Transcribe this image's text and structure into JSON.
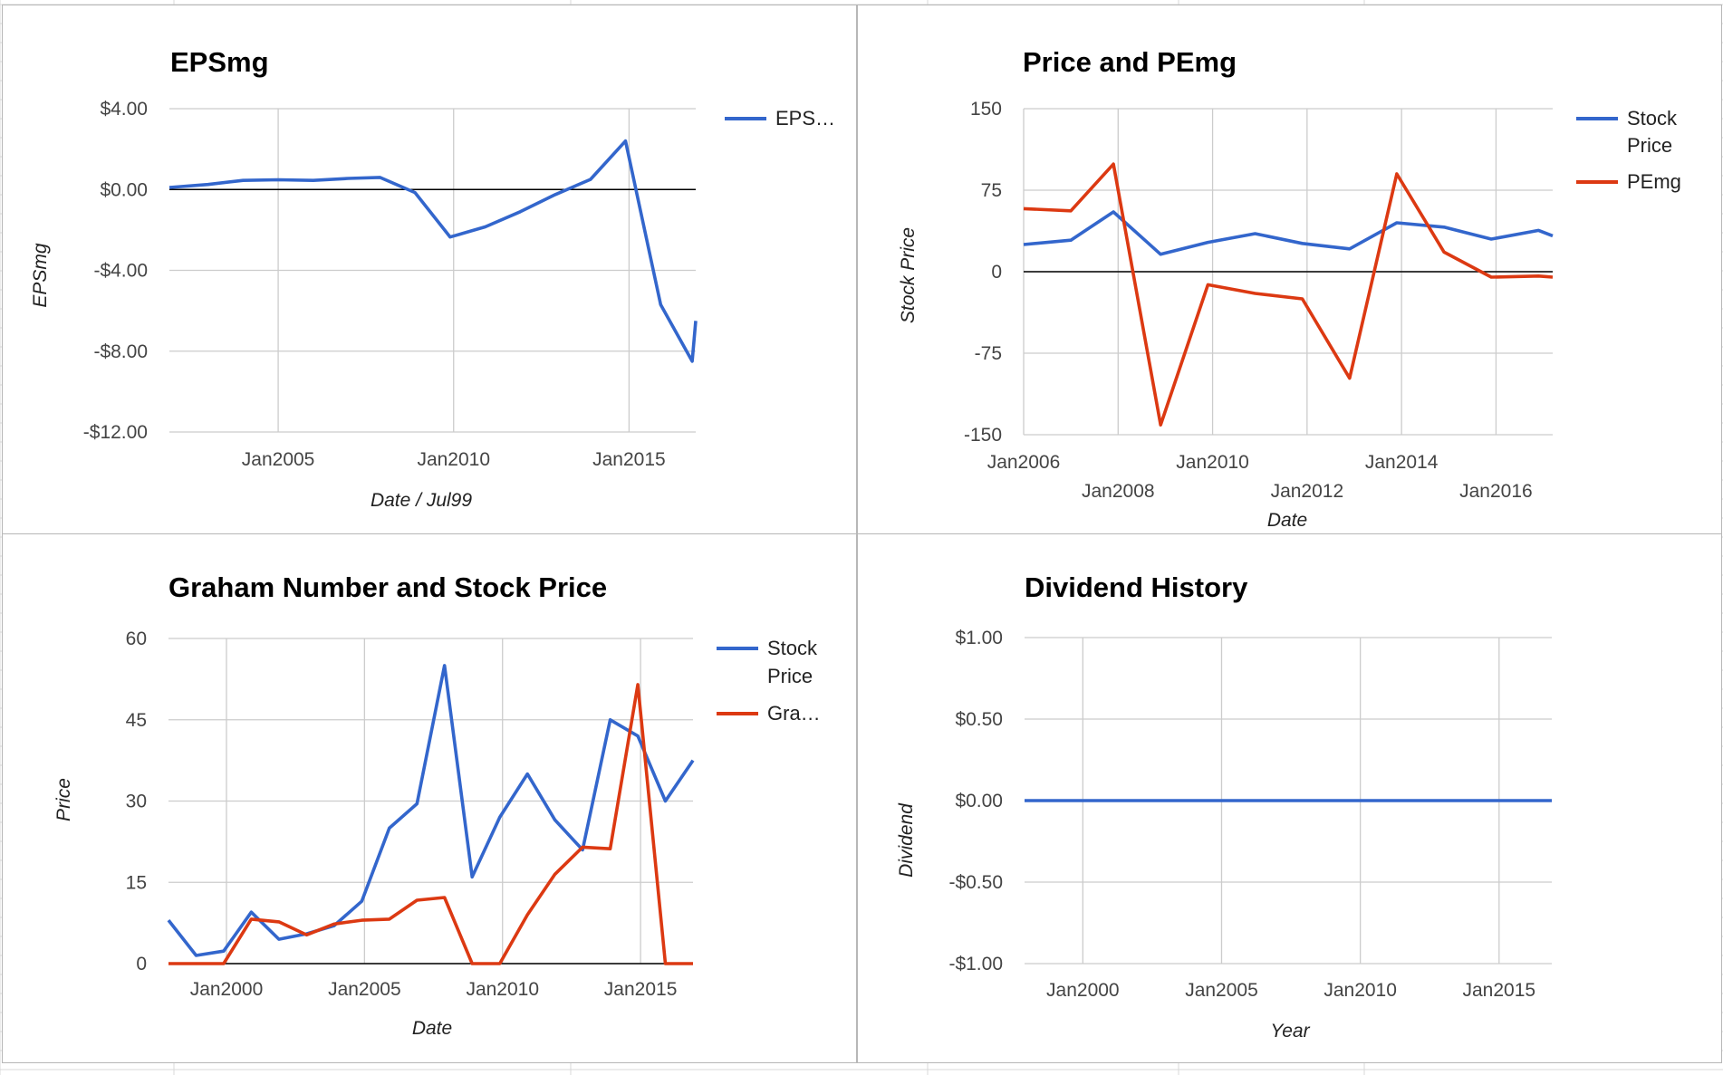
{
  "colors": {
    "blue": "#3366cc",
    "red": "#dc3912",
    "grid": "#cccccc",
    "zero": "#000000"
  },
  "chart_data": [
    {
      "id": "eps",
      "type": "line",
      "title": "EPSmg",
      "xlabel": "Date / Jul99",
      "ylabel": "EPSmg",
      "xlim": [
        2001.9,
        2016.9
      ],
      "ylim": [
        -12,
        4
      ],
      "yticks": [
        4,
        0,
        -4,
        -8,
        -12
      ],
      "ytick_labels": [
        "$4.00",
        "$0.00",
        "-$4.00",
        "-$8.00",
        "-$12.00"
      ],
      "xticks": [
        2005,
        2010,
        2015
      ],
      "xtick_labels": [
        "Jan2005",
        "Jan2010",
        "Jan2015"
      ],
      "legend": "right",
      "grid": true,
      "series": [
        {
          "name": "EPS…",
          "color": "#3366cc",
          "x": [
            2001.9,
            2003.0,
            2004.0,
            2005.0,
            2006.0,
            2007.0,
            2007.9,
            2008.9,
            2009.9,
            2010.9,
            2011.9,
            2012.9,
            2013.9,
            2014.9,
            2015.9,
            2016.8,
            2016.9
          ],
          "y": [
            0.1,
            0.25,
            0.45,
            0.48,
            0.45,
            0.55,
            0.6,
            -0.15,
            -2.35,
            -1.85,
            -1.1,
            -0.25,
            0.5,
            2.4,
            -5.7,
            -8.5,
            -6.5
          ]
        }
      ]
    },
    {
      "id": "pe",
      "type": "line",
      "title": "Price and PEmg",
      "xlabel": "Date",
      "ylabel": "Stock Price",
      "xlim": [
        2006.0,
        2017.2
      ],
      "ylim": [
        -150,
        150
      ],
      "yticks": [
        150,
        75,
        0,
        -75,
        -150
      ],
      "ytick_labels": [
        "150",
        "75",
        "0",
        "-75",
        "-150"
      ],
      "xticks": [
        2006,
        2008,
        2010,
        2012,
        2014,
        2016
      ],
      "xtick_labels": [
        "Jan2006",
        "Jan2008",
        "Jan2010",
        "Jan2012",
        "Jan2014",
        "Jan2016"
      ],
      "legend": "right",
      "grid": true,
      "series": [
        {
          "name": "Stock Price",
          "color": "#3366cc",
          "x": [
            2006.0,
            2007.0,
            2007.9,
            2008.9,
            2009.9,
            2010.9,
            2011.9,
            2012.9,
            2013.9,
            2014.9,
            2015.9,
            2016.9,
            2017.2
          ],
          "y": [
            25,
            29,
            55,
            16,
            27,
            35,
            26,
            21,
            45,
            41,
            30,
            38,
            33
          ]
        },
        {
          "name": "PEmg",
          "color": "#dc3912",
          "x": [
            2006.0,
            2007.0,
            2007.9,
            2008.9,
            2009.9,
            2010.9,
            2011.9,
            2012.9,
            2013.9,
            2014.9,
            2015.9,
            2016.9,
            2017.2
          ],
          "y": [
            58,
            56,
            99,
            -141,
            -12,
            -20,
            -25,
            -98,
            90,
            18,
            -5,
            -4,
            -5
          ]
        }
      ]
    },
    {
      "id": "gn",
      "type": "line",
      "title": "Graham Number and Stock Price",
      "xlabel": "Date",
      "ylabel": "Price",
      "xlim": [
        1997.9,
        2016.9
      ],
      "ylim": [
        0,
        60
      ],
      "yticks": [
        60,
        45,
        30,
        15,
        0
      ],
      "ytick_labels": [
        "60",
        "45",
        "30",
        "15",
        "0"
      ],
      "xticks": [
        2000,
        2005,
        2010,
        2015
      ],
      "xtick_labels": [
        "Jan2000",
        "Jan2005",
        "Jan2010",
        "Jan2015"
      ],
      "legend": "right",
      "grid": true,
      "series": [
        {
          "name": "Stock Price",
          "color": "#3366cc",
          "x": [
            1997.9,
            1998.9,
            1999.9,
            2000.9,
            2001.9,
            2002.9,
            2003.9,
            2004.9,
            2005.9,
            2006.9,
            2007.9,
            2008.9,
            2009.9,
            2010.9,
            2011.9,
            2012.9,
            2013.9,
            2014.9,
            2015.9,
            2016.9
          ],
          "y": [
            8,
            1.5,
            2.3,
            9.5,
            4.5,
            5.5,
            7,
            11.5,
            25,
            29.5,
            55,
            16,
            27,
            35,
            26.5,
            21,
            45,
            42,
            30,
            37.5
          ]
        },
        {
          "name": "Gra…",
          "color": "#dc3912",
          "x": [
            1997.9,
            1998.9,
            1999.9,
            2000.9,
            2001.9,
            2002.9,
            2003.9,
            2004.9,
            2005.9,
            2006.9,
            2007.9,
            2008.9,
            2009.9,
            2010.9,
            2011.9,
            2012.9,
            2013.9,
            2014.9,
            2015.9,
            2016.9
          ],
          "y": [
            0,
            0,
            0,
            8.2,
            7.7,
            5.3,
            7.3,
            8,
            8.2,
            11.7,
            12.2,
            0,
            0,
            9,
            16.5,
            21.5,
            21.2,
            51.5,
            0,
            0
          ]
        }
      ]
    },
    {
      "id": "div",
      "type": "line",
      "title": "Dividend History",
      "xlabel": "Year",
      "ylabel": "Dividend",
      "xlim": [
        1997.9,
        2016.9
      ],
      "ylim": [
        -1,
        1
      ],
      "yticks": [
        1,
        0.5,
        0,
        -0.5,
        -1
      ],
      "ytick_labels": [
        "$1.00",
        "$0.50",
        "$0.00",
        "-$0.50",
        "-$1.00"
      ],
      "xticks": [
        2000,
        2005,
        2010,
        2015
      ],
      "xtick_labels": [
        "Jan2000",
        "Jan2005",
        "Jan2010",
        "Jan2015"
      ],
      "legend": "none",
      "grid": true,
      "series": [
        {
          "name": "",
          "color": "#3366cc",
          "x": [
            1997.9,
            2016.9
          ],
          "y": [
            0,
            0
          ]
        }
      ]
    }
  ]
}
